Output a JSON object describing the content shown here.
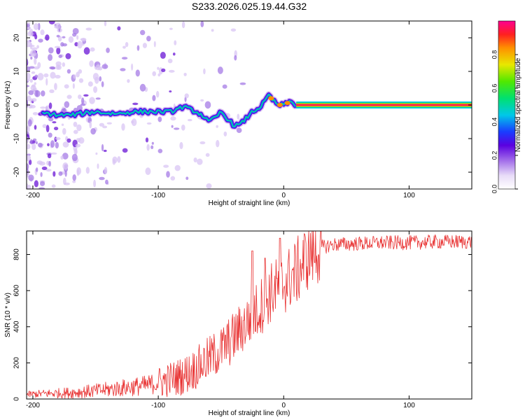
{
  "title": "S233.2026.025.19.44.G32",
  "colors": {
    "line": "#e83030",
    "blob_light": "#d9c6f4",
    "blob_mid": "#a57be6",
    "blob_dark": "#6a14d6",
    "ridge": "#ff1a6e"
  },
  "chart_data": [
    {
      "type": "heatmap",
      "name": "spectrogram",
      "xlabel": "Height of straight line (km)",
      "ylabel": "Frequency (Hz)",
      "xlim": [
        -205,
        150
      ],
      "ylim": [
        -25,
        25
      ],
      "xticks": [
        -200,
        -100,
        0,
        100
      ],
      "xtick_labels": [
        "-200",
        "-100",
        "0",
        "100"
      ],
      "yticks": [
        -20,
        -10,
        0,
        10,
        20
      ],
      "ytick_labels": [
        "-20",
        "-10",
        "0",
        "10",
        "20"
      ],
      "ridge_track": {
        "x": [
          -200,
          -190,
          -180,
          -170,
          -160,
          -150,
          -140,
          -130,
          -120,
          -110,
          -100,
          -90,
          -80,
          -70,
          -65,
          -60,
          -55,
          -50,
          -45,
          -40,
          -35,
          -30,
          -25,
          -20,
          -15,
          -12,
          -10,
          -5,
          0,
          5,
          10
        ],
        "y": [
          -2.5,
          -2.5,
          -3,
          -3,
          -2.5,
          -2,
          -2.5,
          -2.5,
          -2,
          -2,
          -2,
          -2,
          -0.5,
          -2,
          -3,
          -5,
          -4,
          -2,
          -4,
          -6,
          -6,
          -4,
          -2,
          -1,
          1,
          3,
          2,
          0,
          0,
          1,
          0
        ]
      },
      "steady_line": {
        "x_start": 10,
        "x_end": 150,
        "y": 0
      },
      "colorbar": {
        "label": "Normalized spectral amplitude",
        "range": [
          0,
          1
        ],
        "ticks": [
          0,
          0.2,
          0.4,
          0.6,
          0.8
        ],
        "tick_labels": [
          "0.0",
          "0.2",
          "0.4",
          "0.6",
          "0.8"
        ]
      }
    },
    {
      "type": "line",
      "name": "snr",
      "xlabel": "Height of straight line (km)",
      "ylabel": "SNR (10 * v/v)",
      "xlim": [
        -205,
        150
      ],
      "ylim": [
        0,
        930
      ],
      "xticks": [
        -200,
        -100,
        0,
        100
      ],
      "xtick_labels": [
        "-200",
        "-100",
        "0",
        "100"
      ],
      "yticks": [
        0,
        200,
        400,
        600,
        800
      ],
      "ytick_labels": [
        "0",
        "200",
        "400",
        "600",
        "800"
      ],
      "series": [
        {
          "name": "SNR",
          "x": [
            -205,
            -190,
            -170,
            -150,
            -130,
            -110,
            -100,
            -90,
            -80,
            -70,
            -60,
            -50,
            -40,
            -30,
            -20,
            -10,
            0,
            10,
            20,
            30,
            40,
            60,
            80,
            100,
            120,
            150
          ],
          "y": [
            25,
            30,
            35,
            45,
            60,
            75,
            90,
            110,
            130,
            170,
            220,
            270,
            340,
            420,
            500,
            590,
            640,
            700,
            800,
            840,
            855,
            860,
            865,
            865,
            870,
            870
          ],
          "spikes": {
            "x": [
              -25,
              -15,
              -3
            ],
            "y": [
              820,
              780,
              890
            ]
          }
        }
      ]
    }
  ]
}
